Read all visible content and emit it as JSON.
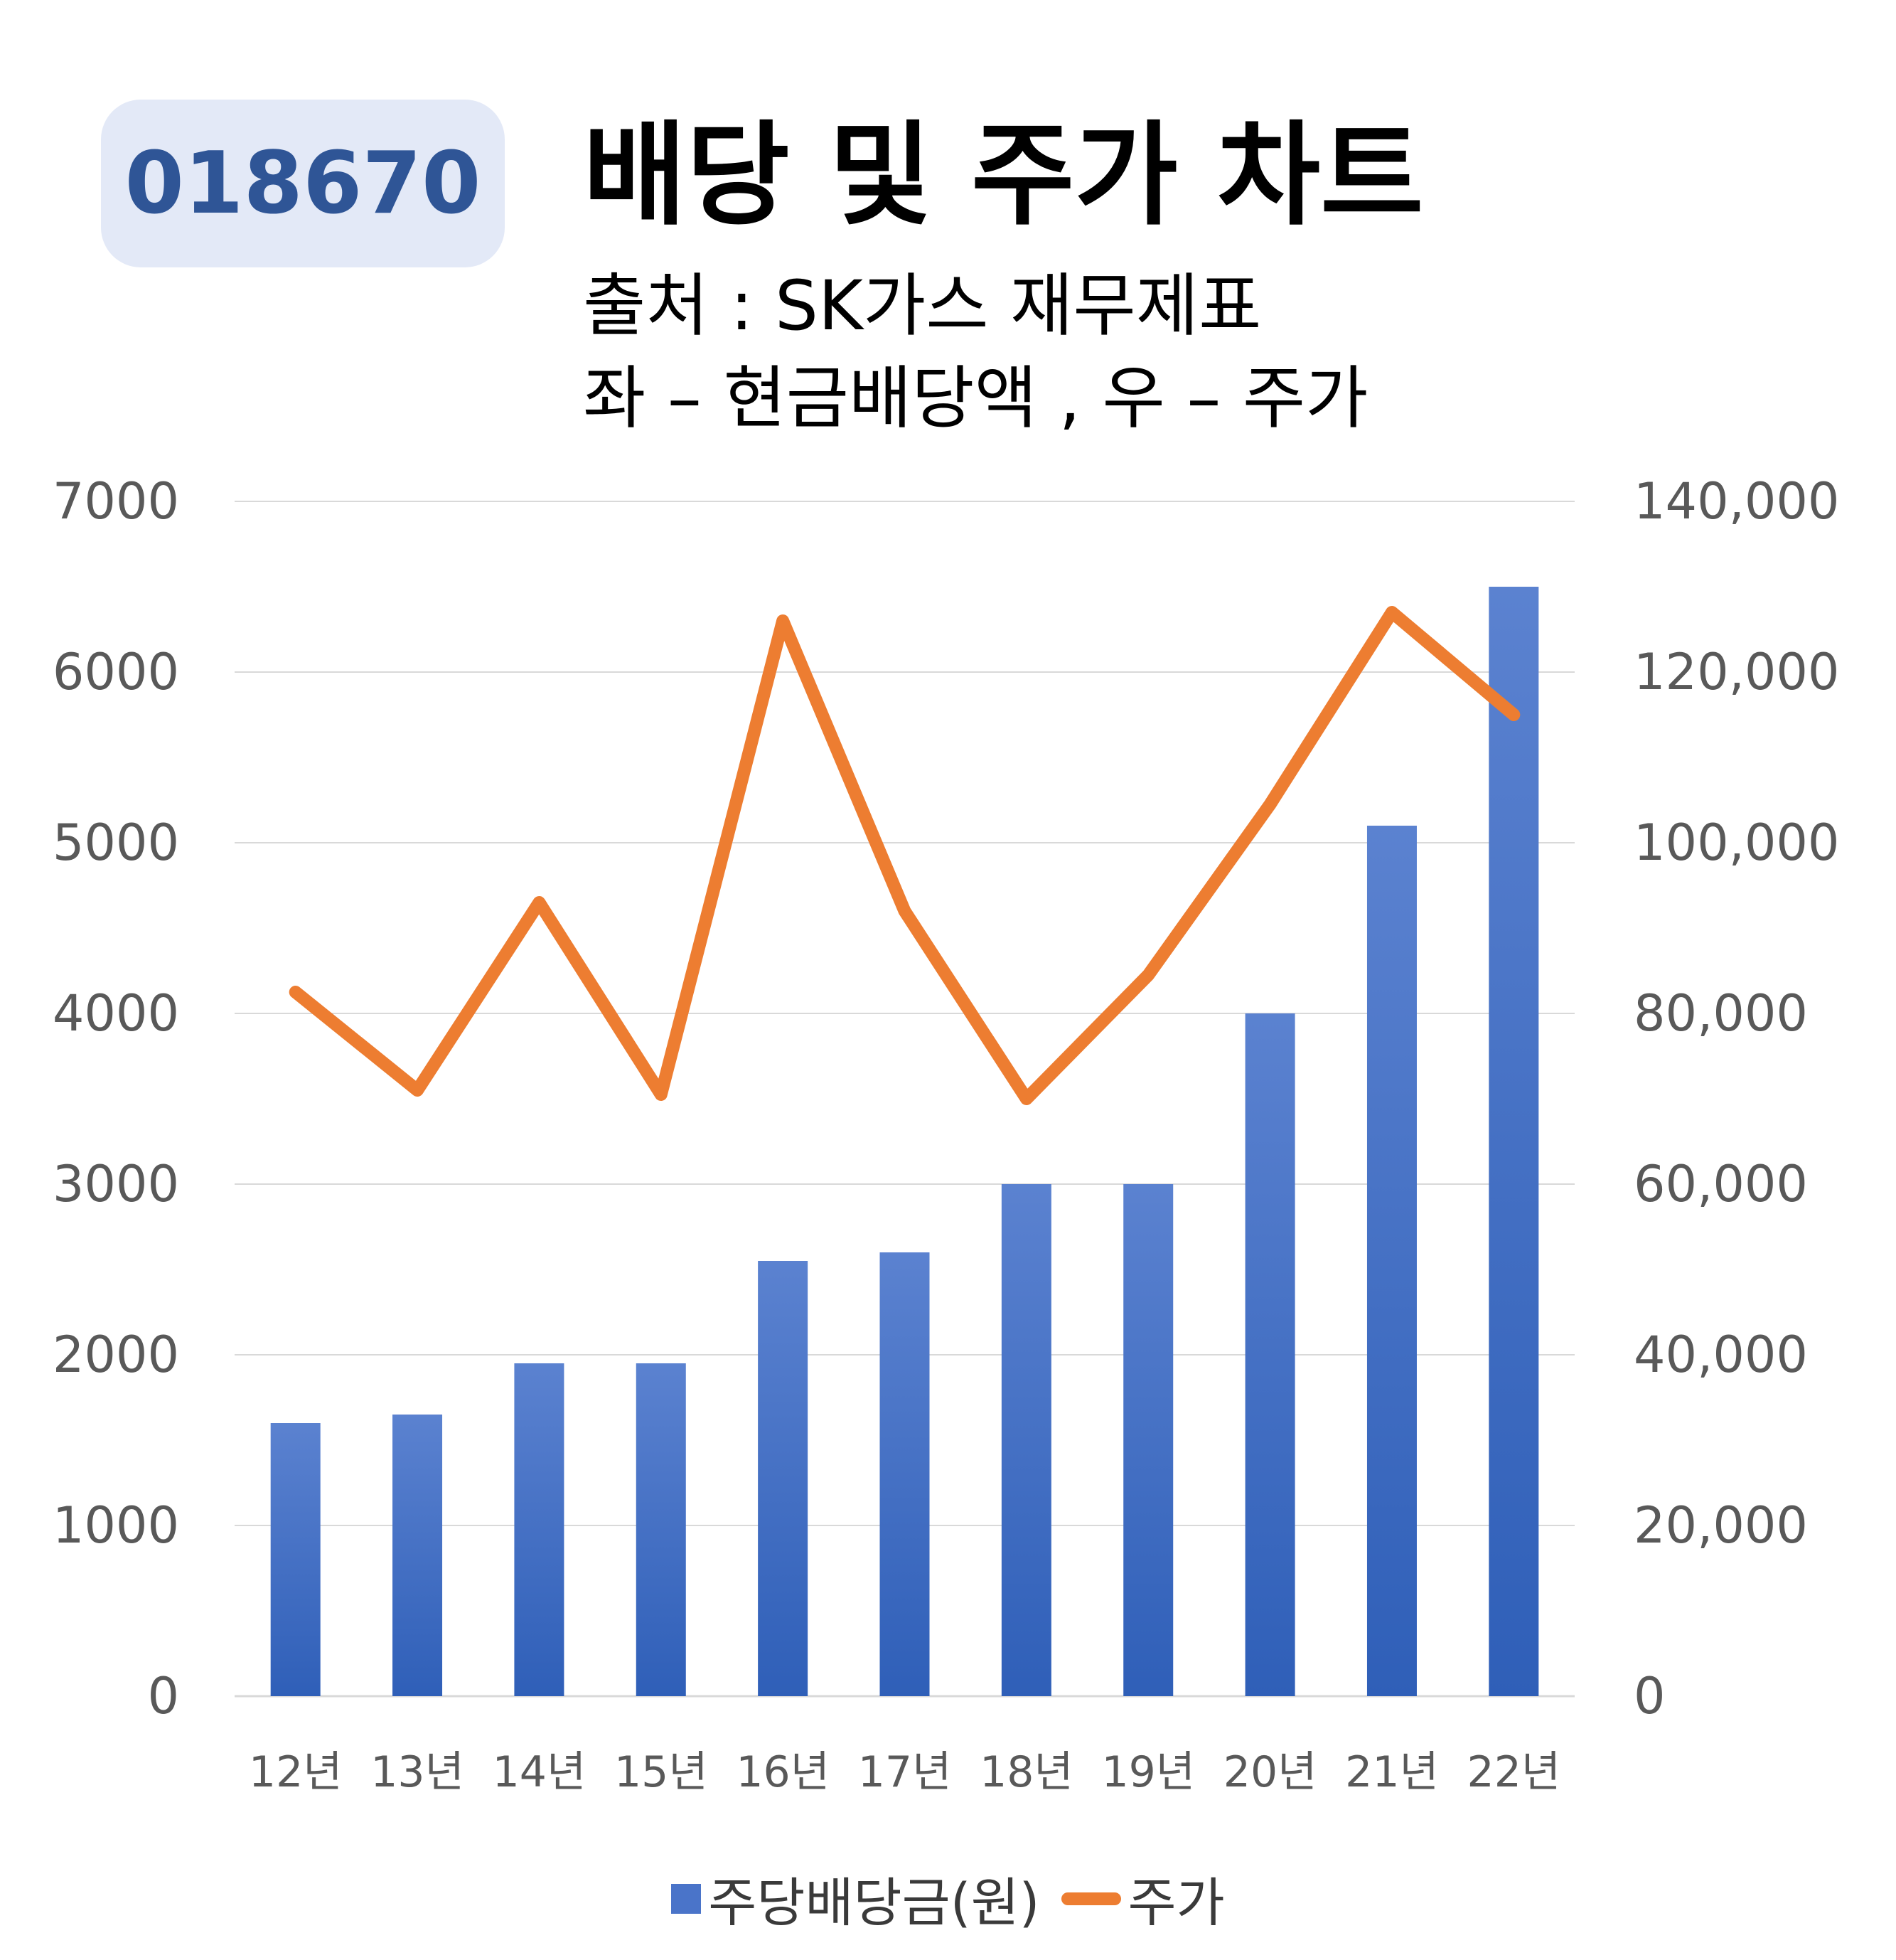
{
  "badge": {
    "code": "018670"
  },
  "header": {
    "title": "배당 및 주가 차트",
    "source": "출처 : SK가스 재무제표",
    "note": "좌 – 현금배당액 , 우 – 주가"
  },
  "chart_data": {
    "type": "bar",
    "categories": [
      "12년",
      "13년",
      "14년",
      "15년",
      "16년",
      "17년",
      "18년",
      "19년",
      "20년",
      "21년",
      "22년"
    ],
    "series": [
      {
        "name": "주당배당금(원)",
        "type": "bar",
        "axis": "left",
        "values": [
          1600,
          1650,
          1950,
          1950,
          2550,
          2600,
          3000,
          3000,
          4000,
          5100,
          6500
        ]
      },
      {
        "name": "주가",
        "type": "line",
        "axis": "right",
        "values": [
          82500,
          71000,
          93000,
          70500,
          126000,
          92000,
          70000,
          84500,
          104500,
          127000,
          115000
        ]
      }
    ],
    "y_left": {
      "ticks": [
        "0",
        "1000",
        "2000",
        "3000",
        "4000",
        "5000",
        "6000",
        "7000"
      ],
      "ylim": [
        0,
        7000
      ]
    },
    "y_right": {
      "ticks": [
        "0",
        "20,000",
        "40,000",
        "60,000",
        "80,000",
        "100,000",
        "120,000",
        "140,000"
      ],
      "ylim": [
        0,
        140000
      ]
    },
    "grid": true,
    "legend": "bottom",
    "colors": {
      "bar": "#4a74c9",
      "bar_top": "#5b82d0",
      "bar_bottom": "#2f5fb8",
      "line": "#ed7d31",
      "grid": "#d9d9d9",
      "axis_text": "#595959"
    }
  }
}
